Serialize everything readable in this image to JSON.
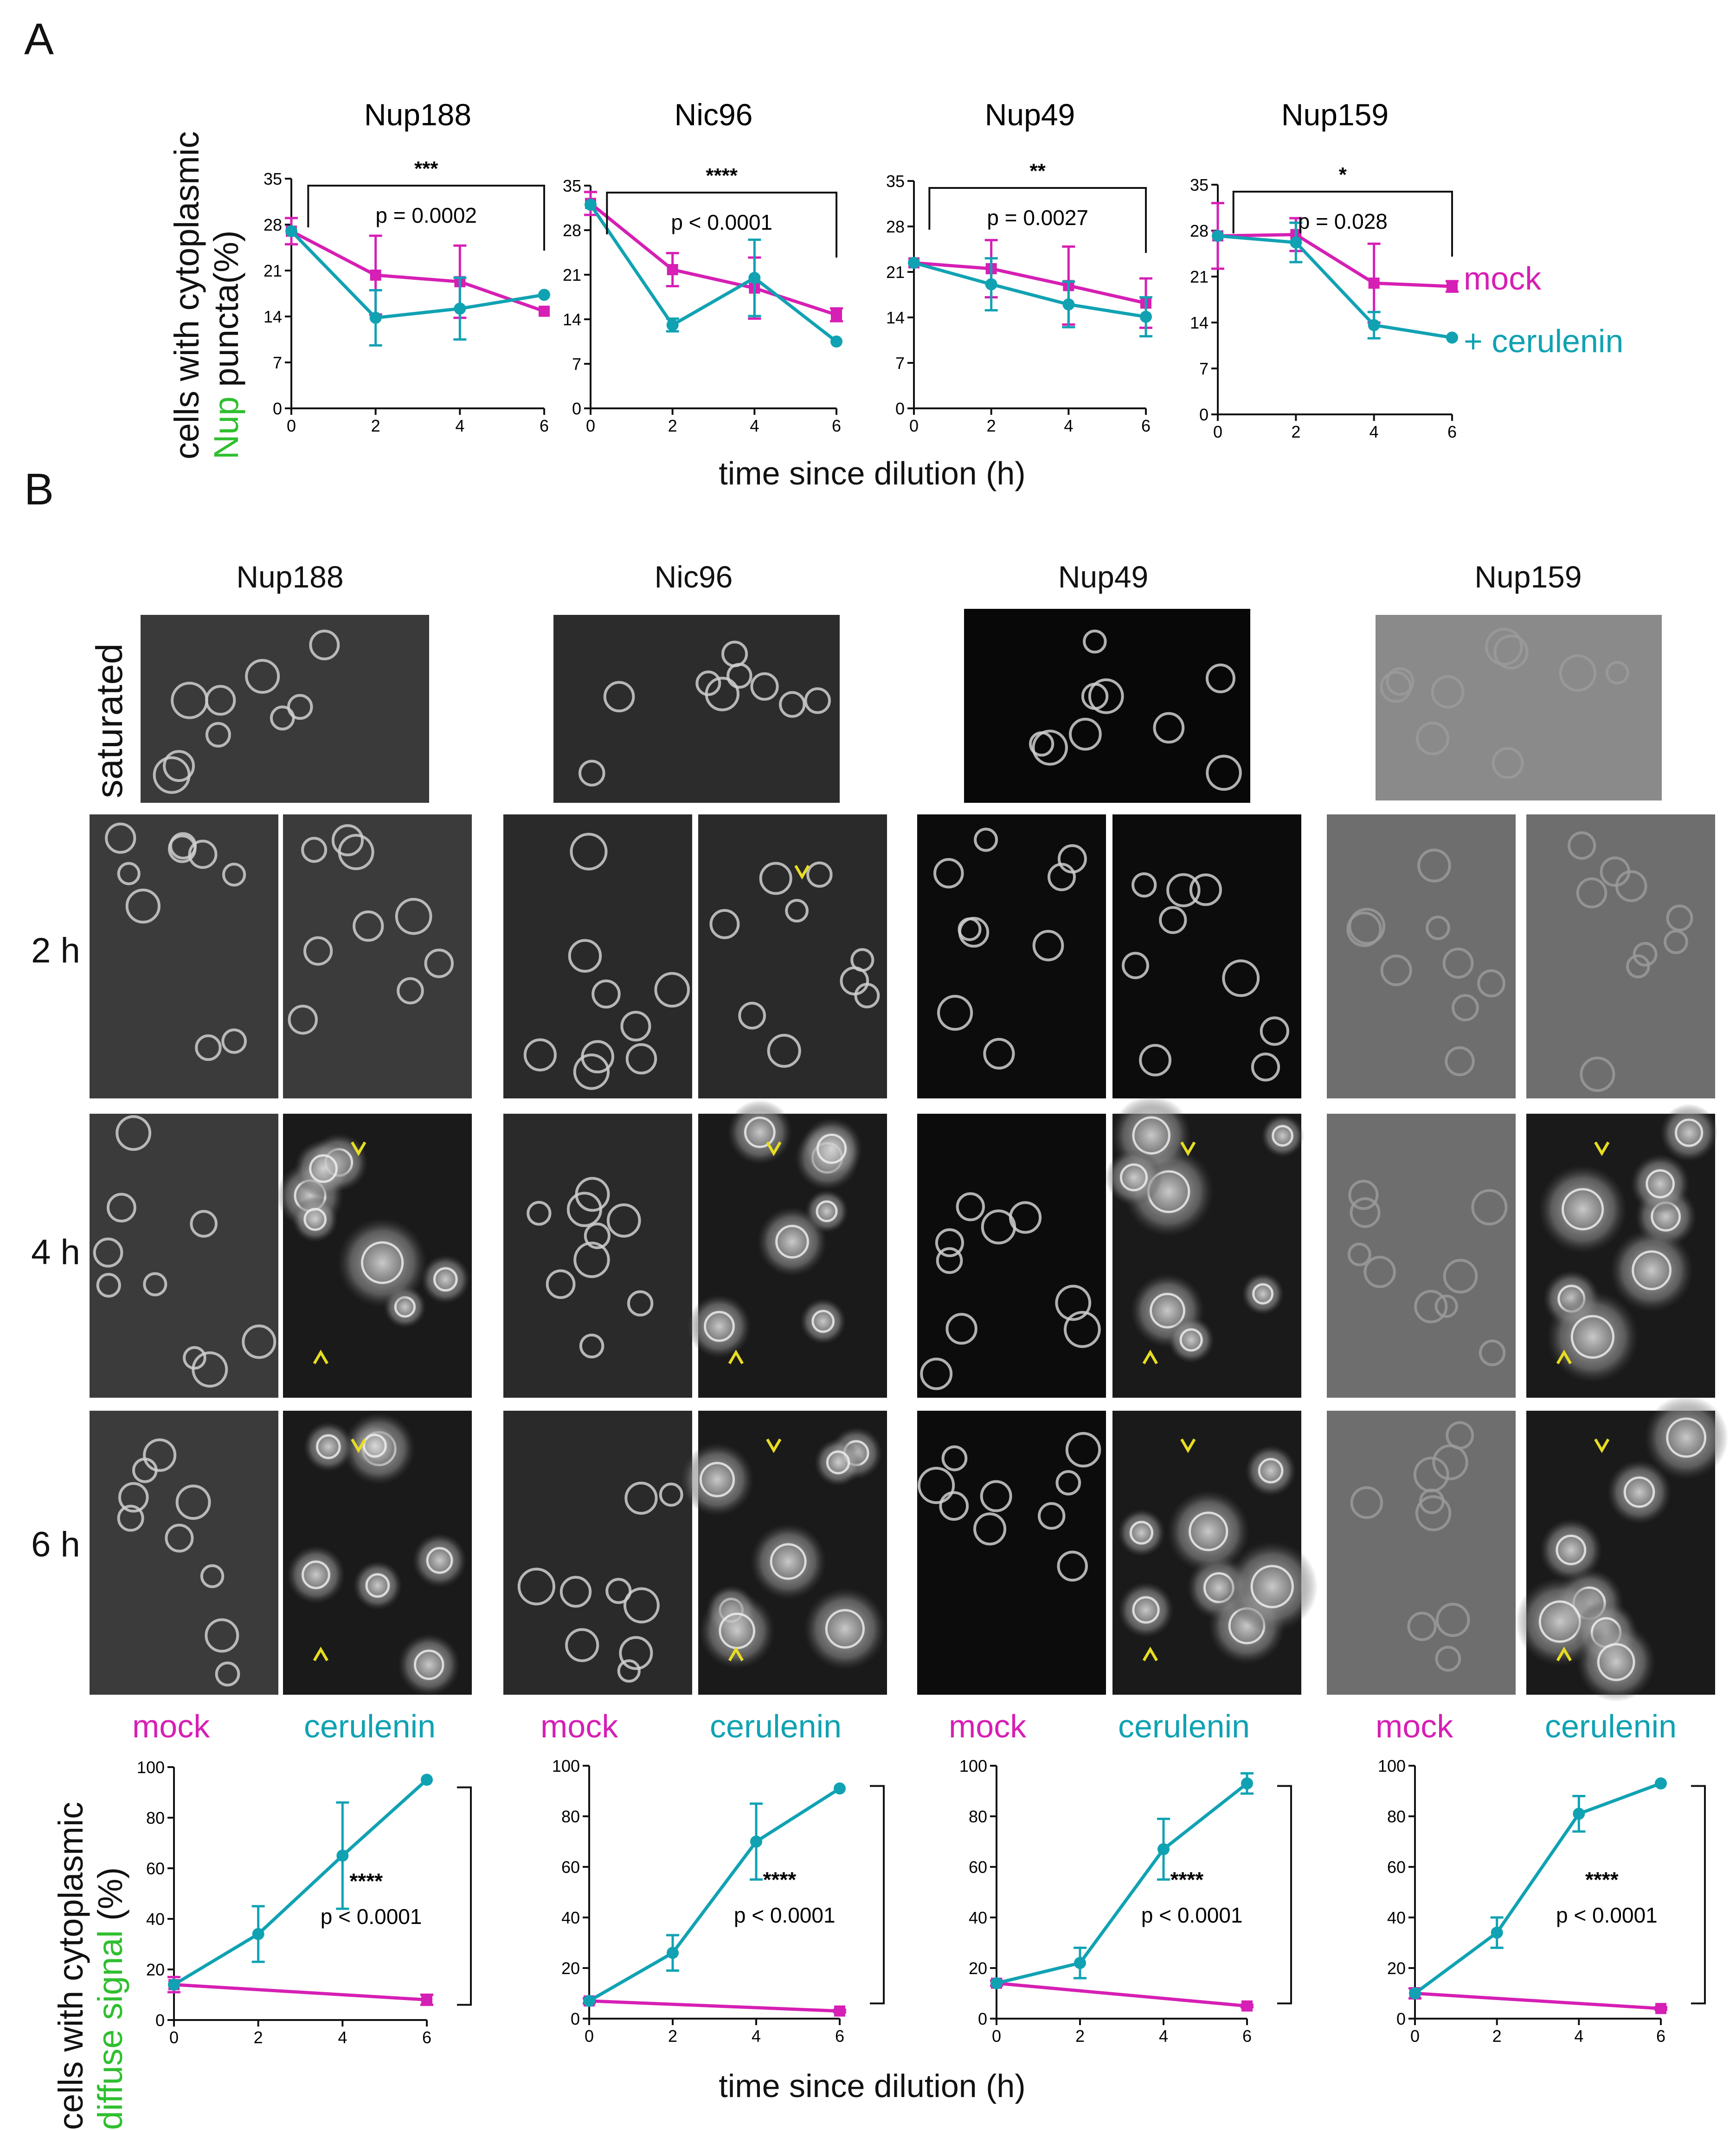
{
  "panels": {
    "a": "A",
    "b": "B"
  },
  "colors": {
    "mock": "#d61fb4",
    "cerulenin": "#10a2b3",
    "green": "#2fbf2f",
    "arrow": "#e8dd21"
  },
  "panelA": {
    "ylabel_part1": "cells with cytoplasmic",
    "ylabel_green": "Nup",
    "ylabel_part2": " puncta(%)",
    "xlabel": "time since dilution (h)",
    "legend": {
      "mock": "mock",
      "cerulenin": "+ cerulenin"
    }
  },
  "panelB": {
    "columns": [
      "Nup188",
      "Nic96",
      "Nup49",
      "Nup159"
    ],
    "rows": {
      "saturated": "saturated",
      "r2": "2 h",
      "r4": "4 h",
      "r6": "6 h"
    },
    "conditions": {
      "mock": "mock",
      "cerulenin": "cerulenin"
    },
    "ylabel_part1": "cells with cytoplasmic",
    "ylabel_green": "diffuse signal",
    "ylabel_part2": " (%)",
    "xlabel": "time since dilution (h)"
  },
  "chart_data": [
    {
      "type": "line",
      "group": "A",
      "title": "Nup188",
      "x": [
        0,
        2,
        4,
        6
      ],
      "xticks": [
        "0",
        "2",
        "4",
        "6"
      ],
      "ylim": [
        0,
        35
      ],
      "yticks": [
        "0",
        "7",
        "14",
        "21",
        "28",
        "35"
      ],
      "series": [
        {
          "name": "mock",
          "values": [
            27,
            20.3,
            19.3,
            14.8
          ],
          "err": [
            2,
            6,
            5.5,
            0
          ]
        },
        {
          "name": "+ cerulenin",
          "values": [
            27,
            13.8,
            15.2,
            17.3
          ],
          "err": [
            0,
            4.2,
            4.7,
            0
          ]
        }
      ],
      "sig": "***",
      "pvalue": "p = 0.0002"
    },
    {
      "type": "line",
      "group": "A",
      "title": "Nic96",
      "x": [
        0,
        2,
        4,
        6
      ],
      "xticks": [
        "0",
        "2",
        "4",
        "6"
      ],
      "ylim": [
        0,
        35
      ],
      "yticks": [
        "0",
        "7",
        "14",
        "21",
        "28",
        "35"
      ],
      "series": [
        {
          "name": "mock",
          "values": [
            32.2,
            21.8,
            18.9,
            14.7
          ],
          "err": [
            1.8,
            2.6,
            4.8,
            1
          ]
        },
        {
          "name": "+ cerulenin",
          "values": [
            32,
            13.1,
            20.5,
            10.5
          ],
          "err": [
            0,
            1,
            6,
            0
          ]
        }
      ],
      "sig": "****",
      "pvalue": "p < 0.0001"
    },
    {
      "type": "line",
      "group": "A",
      "title": "Nup49",
      "x": [
        0,
        2,
        4,
        6
      ],
      "xticks": [
        "0",
        "2",
        "4",
        "6"
      ],
      "ylim": [
        0,
        35
      ],
      "yticks": [
        "0",
        "7",
        "14",
        "21",
        "28",
        "35"
      ],
      "series": [
        {
          "name": "mock",
          "values": [
            22.4,
            21.5,
            18.9,
            16.2
          ],
          "err": [
            0,
            4.4,
            6,
            3.8
          ]
        },
        {
          "name": "+ cerulenin",
          "values": [
            22.4,
            19.1,
            16,
            14.1
          ],
          "err": [
            0,
            4,
            3.5,
            3
          ]
        }
      ],
      "sig": "**",
      "pvalue": "p = 0.0027"
    },
    {
      "type": "line",
      "group": "A",
      "title": "Nup159",
      "x": [
        0,
        2,
        4,
        6
      ],
      "xticks": [
        "0",
        "2",
        "4",
        "6"
      ],
      "ylim": [
        0,
        35
      ],
      "yticks": [
        "0",
        "7",
        "14",
        "21",
        "28",
        "35"
      ],
      "series": [
        {
          "name": "mock",
          "values": [
            27.2,
            27.4,
            20,
            19.5
          ],
          "err": [
            5,
            2.5,
            6,
            0.8
          ]
        },
        {
          "name": "+ cerulenin",
          "values": [
            27.2,
            26.2,
            13.6,
            11.7
          ],
          "err": [
            0,
            3,
            2,
            0
          ]
        }
      ],
      "sig": "*",
      "pvalue": "p = 0.028"
    },
    {
      "type": "line",
      "group": "B",
      "title": "Nup188",
      "x": [
        0,
        2,
        4,
        6
      ],
      "xticks": [
        "0",
        "2",
        "4",
        "6"
      ],
      "ylim": [
        0,
        100
      ],
      "yticks": [
        "0",
        "20",
        "40",
        "60",
        "80",
        "100"
      ],
      "series": [
        {
          "name": "mock",
          "values": [
            14,
            null,
            null,
            8
          ],
          "err": [
            3,
            0,
            0,
            2
          ]
        },
        {
          "name": "cerulenin",
          "values": [
            14,
            34,
            65,
            95
          ],
          "err": [
            0,
            11,
            21,
            0
          ]
        }
      ],
      "sig": "****",
      "pvalue": "p < 0.0001"
    },
    {
      "type": "line",
      "group": "B",
      "title": "Nic96",
      "x": [
        0,
        2,
        4,
        6
      ],
      "xticks": [
        "0",
        "2",
        "4",
        "6"
      ],
      "ylim": [
        0,
        100
      ],
      "yticks": [
        "0",
        "20",
        "40",
        "60",
        "80",
        "100"
      ],
      "series": [
        {
          "name": "mock",
          "values": [
            7,
            null,
            null,
            3
          ],
          "err": [
            1,
            0,
            0,
            0.5
          ]
        },
        {
          "name": "cerulenin",
          "values": [
            7,
            26,
            70,
            91
          ],
          "err": [
            0,
            7,
            15,
            0
          ]
        }
      ],
      "sig": "****",
      "pvalue": "p < 0.0001"
    },
    {
      "type": "line",
      "group": "B",
      "title": "Nup49",
      "x": [
        0,
        2,
        4,
        6
      ],
      "xticks": [
        "0",
        "2",
        "4",
        "6"
      ],
      "ylim": [
        0,
        100
      ],
      "yticks": [
        "0",
        "20",
        "40",
        "60",
        "80",
        "100"
      ],
      "series": [
        {
          "name": "mock",
          "values": [
            14,
            null,
            null,
            5
          ],
          "err": [
            1,
            0,
            0,
            0.5
          ]
        },
        {
          "name": "cerulenin",
          "values": [
            14,
            22,
            67,
            93
          ],
          "err": [
            0,
            6,
            12,
            4
          ]
        }
      ],
      "sig": "****",
      "pvalue": "p < 0.0001"
    },
    {
      "type": "line",
      "group": "B",
      "title": "Nup159",
      "x": [
        0,
        2,
        4,
        6
      ],
      "xticks": [
        "0",
        "2",
        "4",
        "6"
      ],
      "ylim": [
        0,
        100
      ],
      "yticks": [
        "0",
        "20",
        "40",
        "60",
        "80",
        "100"
      ],
      "series": [
        {
          "name": "mock",
          "values": [
            10,
            null,
            null,
            4
          ],
          "err": [
            2,
            0,
            0,
            0.5
          ]
        },
        {
          "name": "cerulenin",
          "values": [
            10,
            34,
            81,
            93
          ],
          "err": [
            0,
            6,
            7,
            0
          ]
        }
      ],
      "sig": "****",
      "pvalue": "p < 0.0001"
    }
  ]
}
